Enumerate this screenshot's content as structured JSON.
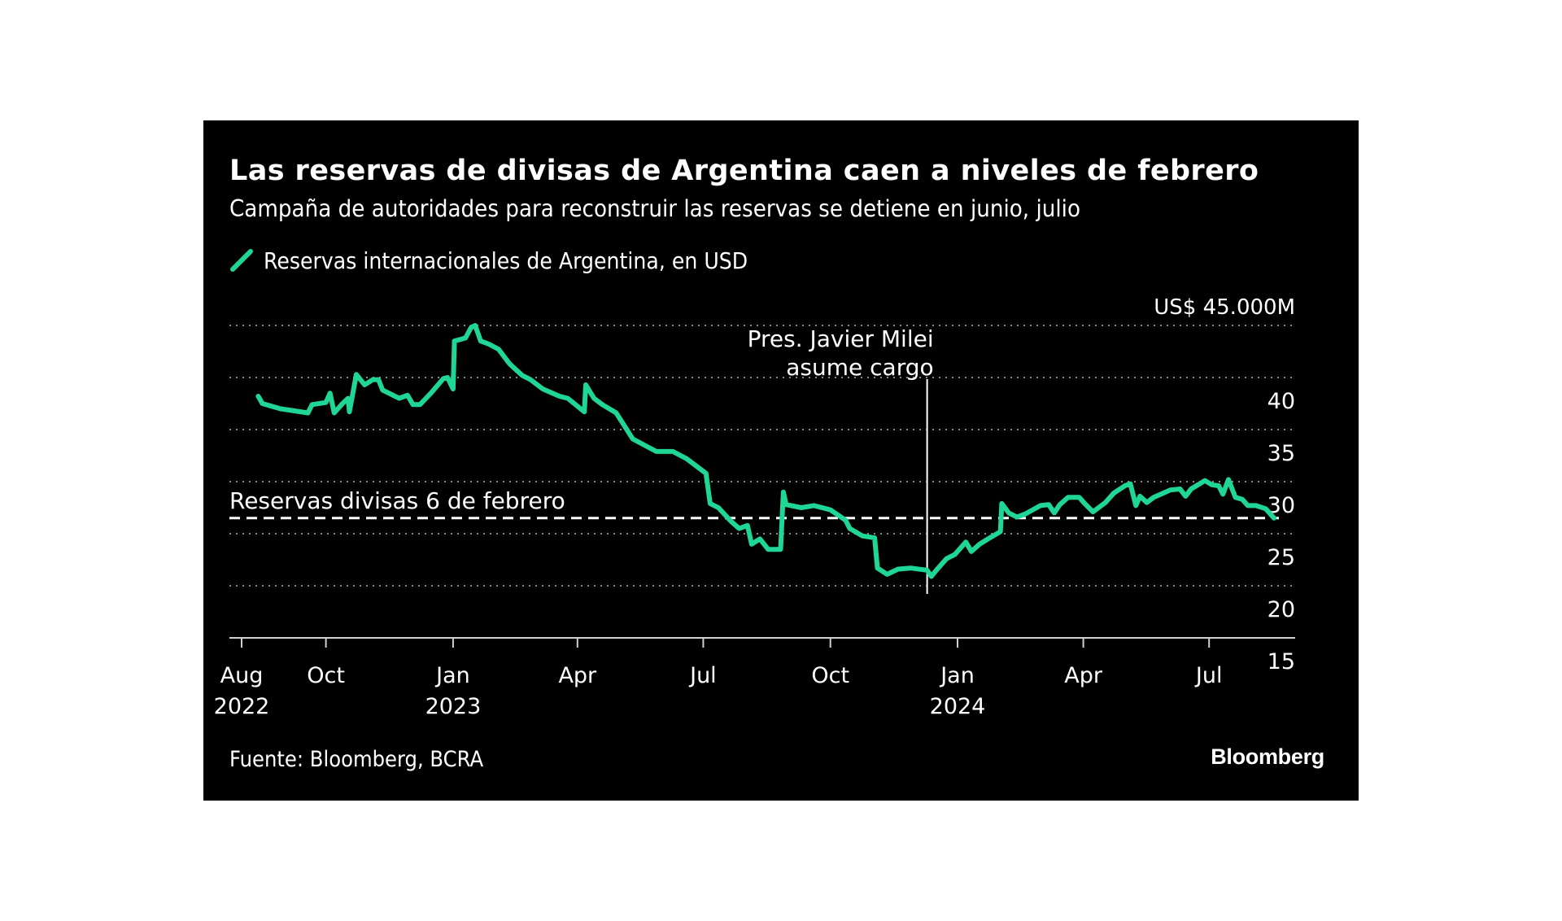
{
  "header": {
    "title": "Las reservas de divisas de Argentina caen a niveles de febrero",
    "subtitle": "Campaña de autoridades para reconstruir las reservas se detiene en junio, julio"
  },
  "footer": {
    "source": "Fuente: Bloomberg, BCRA",
    "logo": "Bloomberg"
  },
  "colors": {
    "background": "#000000",
    "series": "#1fd696",
    "text": "#ffffff",
    "grid": "#8a8a8a"
  },
  "chart_data": {
    "type": "line",
    "title": "Las reservas de divisas de Argentina caen a niveles de febrero",
    "subtitle": "Campaña de autoridades para reconstruir las reservas se detiene en junio, julio",
    "xlabel": "",
    "ylabel": "",
    "y_unit_label": "US$ 45.000M",
    "ylim": [
      15,
      45
    ],
    "y_ticks": [
      {
        "value": 45,
        "label": "US$ 45.000M"
      },
      {
        "value": 40,
        "label": "40"
      },
      {
        "value": 35,
        "label": "35"
      },
      {
        "value": 30,
        "label": "30"
      },
      {
        "value": 25,
        "label": "25"
      },
      {
        "value": 20,
        "label": "20"
      },
      {
        "value": 15,
        "label": "15"
      }
    ],
    "xlim": [
      "2022-07-15",
      "2024-09-30"
    ],
    "x_ticks": [
      {
        "date": "2022-08-01",
        "label": "Aug",
        "year": "2022"
      },
      {
        "date": "2022-10-01",
        "label": "Oct",
        "year": ""
      },
      {
        "date": "2023-01-01",
        "label": "Jan",
        "year": "2023"
      },
      {
        "date": "2023-04-01",
        "label": "Apr",
        "year": ""
      },
      {
        "date": "2023-07-01",
        "label": "Jul",
        "year": ""
      },
      {
        "date": "2023-10-01",
        "label": "Oct",
        "year": ""
      },
      {
        "date": "2024-01-01",
        "label": "Jan",
        "year": "2024"
      },
      {
        "date": "2024-04-01",
        "label": "Apr",
        "year": ""
      },
      {
        "date": "2024-07-01",
        "label": "Jul",
        "year": ""
      }
    ],
    "grid": true,
    "legend": {
      "position": "top-left",
      "entries": [
        "Reservas internacionales de Argentina, en USD"
      ]
    },
    "series": [
      {
        "name": "Reservas internacionales de Argentina, en USD",
        "color": "#1fd696",
        "points": [
          [
            "2022-08-13",
            38.2
          ],
          [
            "2022-08-16",
            37.5
          ],
          [
            "2022-08-29",
            37.0
          ],
          [
            "2022-09-18",
            36.6
          ],
          [
            "2022-09-21",
            37.4
          ],
          [
            "2022-10-01",
            37.6
          ],
          [
            "2022-10-04",
            38.5
          ],
          [
            "2022-10-07",
            36.6
          ],
          [
            "2022-10-13",
            37.5
          ],
          [
            "2022-10-17",
            38.0
          ],
          [
            "2022-10-18",
            36.7
          ],
          [
            "2022-10-23",
            40.3
          ],
          [
            "2022-10-29",
            39.3
          ],
          [
            "2022-11-04",
            39.8
          ],
          [
            "2022-11-08",
            39.8
          ],
          [
            "2022-11-11",
            38.8
          ],
          [
            "2022-11-23",
            38.0
          ],
          [
            "2022-11-29",
            38.3
          ],
          [
            "2022-12-03",
            37.4
          ],
          [
            "2022-12-08",
            37.4
          ],
          [
            "2022-12-16",
            38.5
          ],
          [
            "2022-12-25",
            39.9
          ],
          [
            "2022-12-28",
            40.0
          ],
          [
            "2023-01-01",
            38.9
          ],
          [
            "2023-01-02",
            43.5
          ],
          [
            "2023-01-10",
            43.8
          ],
          [
            "2023-01-14",
            44.8
          ],
          [
            "2023-01-17",
            45.0
          ],
          [
            "2023-01-21",
            43.5
          ],
          [
            "2023-01-27",
            43.2
          ],
          [
            "2023-02-03",
            42.7
          ],
          [
            "2023-02-11",
            41.3
          ],
          [
            "2023-02-20",
            40.2
          ],
          [
            "2023-02-26",
            39.8
          ],
          [
            "2023-03-07",
            38.9
          ],
          [
            "2023-03-19",
            38.2
          ],
          [
            "2023-03-25",
            38.0
          ],
          [
            "2023-04-06",
            36.7
          ],
          [
            "2023-04-07",
            39.3
          ],
          [
            "2023-04-13",
            38.0
          ],
          [
            "2023-04-19",
            37.4
          ],
          [
            "2023-04-29",
            36.6
          ],
          [
            "2023-05-11",
            34.1
          ],
          [
            "2023-05-28",
            32.9
          ],
          [
            "2023-06-09",
            32.9
          ],
          [
            "2023-06-19",
            32.2
          ],
          [
            "2023-07-03",
            30.8
          ],
          [
            "2023-07-06",
            27.9
          ],
          [
            "2023-07-12",
            27.5
          ],
          [
            "2023-07-21",
            26.2
          ],
          [
            "2023-07-27",
            25.5
          ],
          [
            "2023-08-02",
            25.8
          ],
          [
            "2023-08-05",
            24.0
          ],
          [
            "2023-08-11",
            24.5
          ],
          [
            "2023-08-17",
            23.5
          ],
          [
            "2023-08-26",
            23.5
          ],
          [
            "2023-08-28",
            29.0
          ],
          [
            "2023-08-30",
            27.8
          ],
          [
            "2023-09-10",
            27.5
          ],
          [
            "2023-09-19",
            27.7
          ],
          [
            "2023-10-01",
            27.3
          ],
          [
            "2023-10-12",
            26.3
          ],
          [
            "2023-10-15",
            25.5
          ],
          [
            "2023-10-24",
            24.8
          ],
          [
            "2023-11-02",
            24.6
          ],
          [
            "2023-11-04",
            21.7
          ],
          [
            "2023-11-11",
            21.1
          ],
          [
            "2023-11-19",
            21.6
          ],
          [
            "2023-11-28",
            21.7
          ],
          [
            "2023-12-10",
            21.5
          ],
          [
            "2023-12-13",
            20.9
          ],
          [
            "2023-12-18",
            21.7
          ],
          [
            "2023-12-24",
            22.6
          ],
          [
            "2023-12-30",
            23.0
          ],
          [
            "2024-01-07",
            24.2
          ],
          [
            "2024-01-11",
            23.3
          ],
          [
            "2024-01-17",
            24.0
          ],
          [
            "2024-01-23",
            24.5
          ],
          [
            "2024-02-01",
            25.2
          ],
          [
            "2024-02-02",
            27.9
          ],
          [
            "2024-02-07",
            27.0
          ],
          [
            "2024-02-13",
            26.6
          ],
          [
            "2024-02-19",
            26.9
          ],
          [
            "2024-03-01",
            27.7
          ],
          [
            "2024-03-07",
            27.8
          ],
          [
            "2024-03-11",
            27.0
          ],
          [
            "2024-03-15",
            27.8
          ],
          [
            "2024-03-21",
            28.5
          ],
          [
            "2024-03-29",
            28.5
          ],
          [
            "2024-04-02",
            27.9
          ],
          [
            "2024-04-08",
            27.1
          ],
          [
            "2024-04-17",
            28.0
          ],
          [
            "2024-04-23",
            28.9
          ],
          [
            "2024-05-01",
            29.6
          ],
          [
            "2024-05-05",
            29.8
          ],
          [
            "2024-05-09",
            27.7
          ],
          [
            "2024-05-12",
            28.6
          ],
          [
            "2024-05-17",
            28.0
          ],
          [
            "2024-05-22",
            28.5
          ],
          [
            "2024-06-03",
            29.2
          ],
          [
            "2024-06-10",
            29.3
          ],
          [
            "2024-06-14",
            28.6
          ],
          [
            "2024-06-18",
            29.3
          ],
          [
            "2024-06-28",
            30.1
          ],
          [
            "2024-07-03",
            29.7
          ],
          [
            "2024-07-08",
            29.6
          ],
          [
            "2024-07-11",
            28.8
          ],
          [
            "2024-07-15",
            30.2
          ],
          [
            "2024-07-20",
            28.5
          ],
          [
            "2024-07-25",
            28.3
          ],
          [
            "2024-07-29",
            27.7
          ],
          [
            "2024-08-04",
            27.7
          ],
          [
            "2024-08-11",
            27.4
          ],
          [
            "2024-08-17",
            26.5
          ]
        ]
      }
    ],
    "reference_line": {
      "label": "Reservas divisas 6 de febrero",
      "value": 26.5,
      "style": "dashed"
    },
    "annotations": [
      {
        "date": "2023-12-10",
        "lines": [
          "Pres. Javier Milei",
          "asume cargo"
        ]
      }
    ]
  }
}
